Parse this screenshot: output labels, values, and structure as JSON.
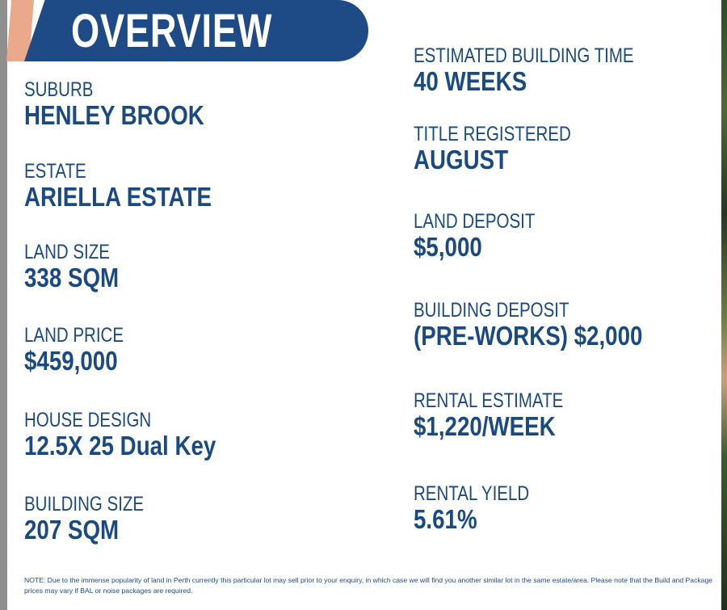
{
  "header": {
    "title": "OVERVIEW"
  },
  "left_items": [
    {
      "label": "SUBURB",
      "value": "HENLEY BROOK"
    },
    {
      "label": "ESTATE",
      "value": "ARIELLA  ESTATE"
    },
    {
      "label": "LAND SIZE",
      "value": "338  SQM"
    },
    {
      "label": "LAND PRICE",
      "value": "$459,000"
    },
    {
      "label": "HOUSE DESIGN",
      "value": "12.5X 25 Dual Key"
    },
    {
      "label": "BUILDING SIZE",
      "value": "207 SQM"
    }
  ],
  "right_items": [
    {
      "label": "ESTIMATED BUILDING TIME",
      "value": "40 WEEKS"
    },
    {
      "label": "TITLE REGISTERED",
      "value": "AUGUST"
    },
    {
      "label": "LAND DEPOSIT",
      "value": "$5,000"
    },
    {
      "label": "BUILDING DEPOSIT",
      "value": "(PRE-WORKS) $2,000"
    },
    {
      "label": "RENTAL ESTIMATE",
      "value": "$1,220/WEEK"
    },
    {
      "label": "RENTAL YIELD",
      "value": "5.61%"
    }
  ],
  "note": "NOTE: Due to the immense popularity of land in Perth currently this particular lot may sell prior to your enquiry, in which case we will find you another similar lot in the same estate/area. Please note that the Build and Package prices may vary if BAL or noise packages are required.",
  "colors": {
    "brand_blue": "#1e4b86",
    "text_blue": "#1b4a82",
    "accent_peach": "#e9a98a"
  }
}
